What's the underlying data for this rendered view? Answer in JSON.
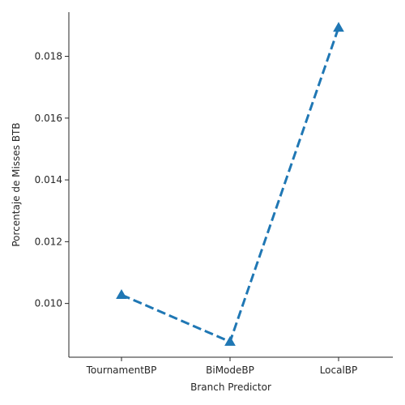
{
  "chart_data": {
    "type": "line",
    "categories": [
      "TournamentBP",
      "BiModeBP",
      "LocalBP"
    ],
    "series": [
      {
        "values": [
          0.01028,
          0.00876,
          0.01893
        ],
        "color": "#1f77b4",
        "line_style": "dashed",
        "marker": "triangle-up"
      }
    ],
    "xlabel": "Branch Predictor",
    "ylabel": "Porcentaje de Misses BTB",
    "yticks": [
      0.01,
      0.012,
      0.014,
      0.016,
      0.018
    ],
    "ytick_labels": [
      "0.010",
      "0.012",
      "0.014",
      "0.016",
      "0.018"
    ],
    "ylim": [
      0.00826,
      0.01943
    ],
    "grid": false,
    "spines": "left-bottom"
  }
}
